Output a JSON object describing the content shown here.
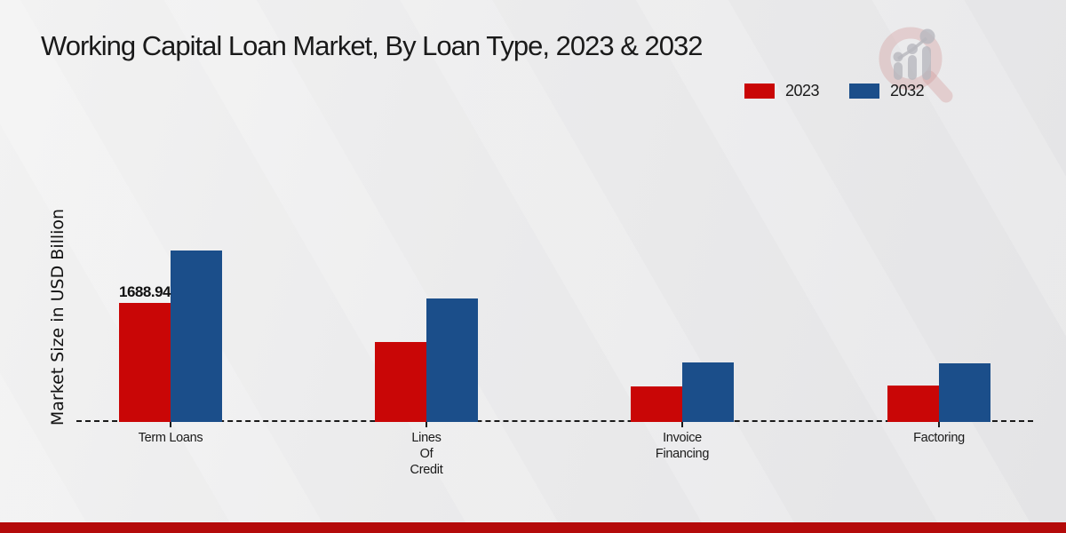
{
  "title": "Working Capital Loan Market, By Loan Type, 2023 & 2032",
  "ylabel": "Market Size in USD Billion",
  "legend": [
    {
      "label": "2023",
      "color": "#c90606"
    },
    {
      "label": "2032",
      "color": "#1b4e8a"
    }
  ],
  "colors": {
    "series_2023": "#c90606",
    "series_2032": "#1b4e8a",
    "footer_strip": "#b40a0a",
    "axis": "#1a1a1a",
    "text": "#1a1a1a",
    "background": "#ebebec"
  },
  "watermark": {
    "name": "magnifier-bar-chart-logo"
  },
  "chart_data": {
    "type": "bar",
    "title": "Working Capital Loan Market, By Loan Type, 2023 & 2032",
    "xlabel": "",
    "ylabel": "Market Size in USD Billion",
    "legend_position": "top-right",
    "grid": false,
    "axis_style": "dashed-baseline-only",
    "ylim": [
      0,
      2600
    ],
    "categories": [
      "Term Loans",
      "Lines Of Credit",
      "Invoice Financing",
      "Factoring"
    ],
    "category_label_lines": [
      [
        "Term Loans"
      ],
      [
        "Lines",
        "Of",
        "Credit"
      ],
      [
        "Invoice",
        "Financing"
      ],
      [
        "Factoring"
      ]
    ],
    "series": [
      {
        "name": "2023",
        "color": "#c90606",
        "values": [
          1688.94,
          1130,
          500,
          515
        ]
      },
      {
        "name": "2032",
        "color": "#1b4e8a",
        "values": [
          2430,
          1750,
          845,
          830
        ]
      }
    ],
    "data_labels": [
      {
        "category": "Term Loans",
        "series": "2023",
        "text": "1688.94"
      }
    ]
  }
}
